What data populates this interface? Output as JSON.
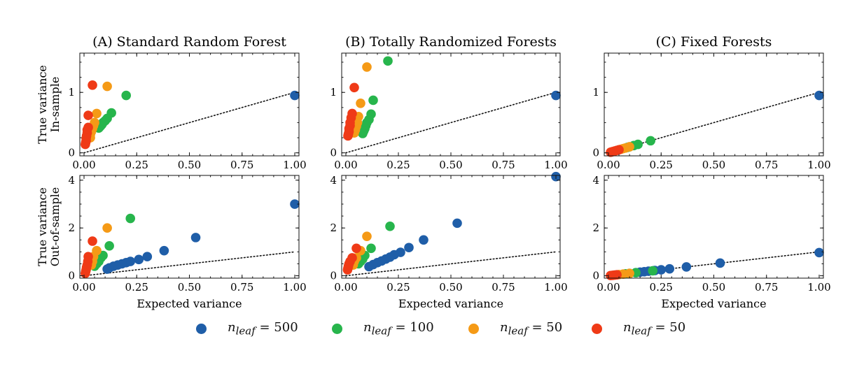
{
  "legend": {
    "items": [
      {
        "label_var": "n",
        "label_sub": "leaf",
        "label_rest": " = 500",
        "color": "#1f5ea8"
      },
      {
        "label_var": "n",
        "label_sub": "leaf",
        "label_rest": " = 100",
        "color": "#27b54c"
      },
      {
        "label_var": "n",
        "label_sub": "leaf",
        "label_rest": " = 50",
        "color": "#f59a16"
      },
      {
        "label_var": "n",
        "label_sub": "leaf",
        "label_rest": " = 50",
        "color": "#ef3a17"
      }
    ]
  },
  "chart_data": [
    {
      "type": "scatter",
      "panel": "A-top",
      "title": "(A) Standard Random Forest",
      "ylabel": [
        "True variance",
        "In-sample"
      ],
      "xlabel": "",
      "xlim": [
        -0.02,
        1.02
      ],
      "ylim": [
        -0.05,
        1.65
      ],
      "xticks": [
        "0.00",
        "0.25",
        "0.50",
        "0.75",
        "1.00"
      ],
      "yticks": [
        "0",
        "1"
      ],
      "reference_line": "y = x (dotted)",
      "series": [
        {
          "color_key": 0,
          "x": [
            1.0
          ],
          "y": [
            0.95
          ]
        },
        {
          "color_key": 1,
          "x": [
            0.2,
            0.13,
            0.11,
            0.1,
            0.09,
            0.085,
            0.08,
            0.075,
            0.07
          ],
          "y": [
            0.95,
            0.66,
            0.57,
            0.53,
            0.5,
            0.47,
            0.45,
            0.43,
            0.41
          ]
        },
        {
          "color_key": 2,
          "x": [
            0.11,
            0.06,
            0.05,
            0.045,
            0.04,
            0.035,
            0.03,
            0.03
          ],
          "y": [
            1.1,
            0.65,
            0.5,
            0.45,
            0.4,
            0.35,
            0.3,
            0.25
          ]
        },
        {
          "color_key": 3,
          "x": [
            0.04,
            0.02,
            0.02,
            0.015,
            0.015,
            0.012,
            0.01,
            0.01,
            0.008,
            0.006
          ],
          "y": [
            1.12,
            0.62,
            0.42,
            0.38,
            0.33,
            0.28,
            0.24,
            0.2,
            0.17,
            0.14
          ]
        }
      ]
    },
    {
      "type": "scatter",
      "panel": "B-top",
      "title": "(B) Totally Randomized Forests",
      "ylabel": [],
      "xlabel": "",
      "xlim": [
        -0.02,
        1.02
      ],
      "ylim": [
        -0.05,
        1.65
      ],
      "xticks": [
        "0.00",
        "0.25",
        "0.50",
        "0.75",
        "1.00"
      ],
      "yticks": [
        "0",
        "1"
      ],
      "reference_line": "y = x (dotted)",
      "series": [
        {
          "color_key": 0,
          "x": [
            1.0
          ],
          "y": [
            0.95
          ]
        },
        {
          "color_key": 1,
          "x": [
            0.2,
            0.13,
            0.12,
            0.11,
            0.1,
            0.095,
            0.09,
            0.085,
            0.08
          ],
          "y": [
            1.52,
            0.87,
            0.64,
            0.55,
            0.5,
            0.45,
            0.4,
            0.36,
            0.32
          ]
        },
        {
          "color_key": 2,
          "x": [
            0.1,
            0.07,
            0.06,
            0.055,
            0.05,
            0.045,
            0.04
          ],
          "y": [
            1.42,
            0.82,
            0.6,
            0.5,
            0.44,
            0.38,
            0.33
          ]
        },
        {
          "color_key": 3,
          "x": [
            0.04,
            0.03,
            0.025,
            0.02,
            0.02,
            0.015,
            0.015,
            0.012,
            0.01
          ],
          "y": [
            1.08,
            0.65,
            0.58,
            0.5,
            0.45,
            0.4,
            0.35,
            0.31,
            0.28
          ]
        }
      ]
    },
    {
      "type": "scatter",
      "panel": "C-top",
      "title": "(C) Fixed Forests",
      "ylabel": [],
      "xlabel": "",
      "xlim": [
        -0.02,
        1.02
      ],
      "ylim": [
        -0.05,
        1.65
      ],
      "xticks": [
        "0.00",
        "0.25",
        "0.50",
        "0.75",
        "1.00"
      ],
      "yticks": [
        "0",
        "1"
      ],
      "reference_line": "y = x (dotted)",
      "series": [
        {
          "color_key": 0,
          "x": [
            1.0
          ],
          "y": [
            0.95
          ]
        },
        {
          "color_key": 1,
          "x": [
            0.2,
            0.14,
            0.12,
            0.1,
            0.09
          ],
          "y": [
            0.2,
            0.14,
            0.12,
            0.1,
            0.09
          ]
        },
        {
          "color_key": 2,
          "x": [
            0.1,
            0.08,
            0.07,
            0.06
          ],
          "y": [
            0.1,
            0.08,
            0.07,
            0.06
          ]
        },
        {
          "color_key": 3,
          "x": [
            0.05,
            0.04,
            0.03,
            0.02,
            0.015,
            0.01
          ],
          "y": [
            0.05,
            0.04,
            0.03,
            0.02,
            0.015,
            0.01
          ]
        }
      ]
    },
    {
      "type": "scatter",
      "panel": "A-bottom",
      "title": "",
      "ylabel": [
        "True variance",
        "Out-of-sample"
      ],
      "xlabel": "Expected variance",
      "xlim": [
        -0.02,
        1.02
      ],
      "ylim": [
        -0.1,
        4.2
      ],
      "xticks": [
        "0.00",
        "0.25",
        "0.50",
        "0.75",
        "1.00"
      ],
      "yticks": [
        "0",
        "2",
        "4"
      ],
      "reference_line": "y = x (dotted)",
      "series": [
        {
          "color_key": 0,
          "x": [
            1.0,
            0.53,
            0.38,
            0.3,
            0.26,
            0.22,
            0.2,
            0.18,
            0.16,
            0.14,
            0.12,
            0.11
          ],
          "y": [
            3.0,
            1.6,
            1.05,
            0.8,
            0.68,
            0.6,
            0.55,
            0.5,
            0.45,
            0.4,
            0.33,
            0.28
          ]
        },
        {
          "color_key": 1,
          "x": [
            0.22,
            0.12,
            0.09,
            0.08,
            0.07,
            0.06,
            0.05
          ],
          "y": [
            2.4,
            1.25,
            0.85,
            0.75,
            0.6,
            0.5,
            0.4
          ]
        },
        {
          "color_key": 2,
          "x": [
            0.11,
            0.06,
            0.045,
            0.04,
            0.035
          ],
          "y": [
            2.0,
            1.05,
            0.8,
            0.6,
            0.45
          ]
        },
        {
          "color_key": 3,
          "x": [
            0.04,
            0.02,
            0.018,
            0.015,
            0.012,
            0.01,
            0.008,
            0.006
          ],
          "y": [
            1.45,
            0.8,
            0.6,
            0.45,
            0.35,
            0.25,
            0.18,
            0.1
          ]
        }
      ]
    },
    {
      "type": "scatter",
      "panel": "B-bottom",
      "title": "",
      "ylabel": [],
      "xlabel": "Expected variance",
      "xlim": [
        -0.02,
        1.02
      ],
      "ylim": [
        -0.1,
        4.2
      ],
      "xticks": [
        "0.00",
        "0.25",
        "0.50",
        "0.75",
        "1.00"
      ],
      "yticks": [
        "0",
        "2",
        "4"
      ],
      "reference_line": "y = x (dotted)",
      "series": [
        {
          "color_key": 0,
          "x": [
            1.0,
            0.53,
            0.37,
            0.3,
            0.26,
            0.23,
            0.21,
            0.19,
            0.17,
            0.15,
            0.13,
            0.11
          ],
          "y": [
            4.15,
            2.2,
            1.5,
            1.18,
            0.98,
            0.88,
            0.78,
            0.7,
            0.62,
            0.55,
            0.47,
            0.38
          ]
        },
        {
          "color_key": 1,
          "x": [
            0.21,
            0.12,
            0.09,
            0.08,
            0.07,
            0.06
          ],
          "y": [
            2.07,
            1.15,
            0.85,
            0.7,
            0.6,
            0.5
          ]
        },
        {
          "color_key": 2,
          "x": [
            0.1,
            0.07,
            0.05,
            0.04,
            0.035
          ],
          "y": [
            1.65,
            1.05,
            0.75,
            0.6,
            0.45
          ]
        },
        {
          "color_key": 3,
          "x": [
            0.05,
            0.03,
            0.02,
            0.015,
            0.012,
            0.01,
            0.008
          ],
          "y": [
            1.15,
            0.75,
            0.6,
            0.5,
            0.4,
            0.32,
            0.25
          ]
        }
      ]
    },
    {
      "type": "scatter",
      "panel": "C-bottom",
      "title": "",
      "ylabel": [],
      "xlabel": "Expected variance",
      "xlim": [
        -0.02,
        1.02
      ],
      "ylim": [
        -0.1,
        4.2
      ],
      "xticks": [
        "0.00",
        "0.25",
        "0.50",
        "0.75",
        "1.00"
      ],
      "yticks": [
        "0",
        "2",
        "4"
      ],
      "reference_line": "y = x (dotted)",
      "series": [
        {
          "color_key": 0,
          "x": [
            1.0,
            0.53,
            0.37,
            0.29,
            0.25,
            0.22,
            0.19,
            0.17,
            0.15,
            0.13
          ],
          "y": [
            0.97,
            0.53,
            0.37,
            0.29,
            0.25,
            0.22,
            0.19,
            0.17,
            0.15,
            0.13
          ]
        },
        {
          "color_key": 1,
          "x": [
            0.21,
            0.13,
            0.1,
            0.08
          ],
          "y": [
            0.21,
            0.13,
            0.1,
            0.08
          ]
        },
        {
          "color_key": 2,
          "x": [
            0.1,
            0.07,
            0.05
          ],
          "y": [
            0.1,
            0.07,
            0.05
          ]
        },
        {
          "color_key": 3,
          "x": [
            0.04,
            0.03,
            0.02,
            0.01
          ],
          "y": [
            0.04,
            0.03,
            0.02,
            0.01
          ]
        }
      ]
    }
  ]
}
